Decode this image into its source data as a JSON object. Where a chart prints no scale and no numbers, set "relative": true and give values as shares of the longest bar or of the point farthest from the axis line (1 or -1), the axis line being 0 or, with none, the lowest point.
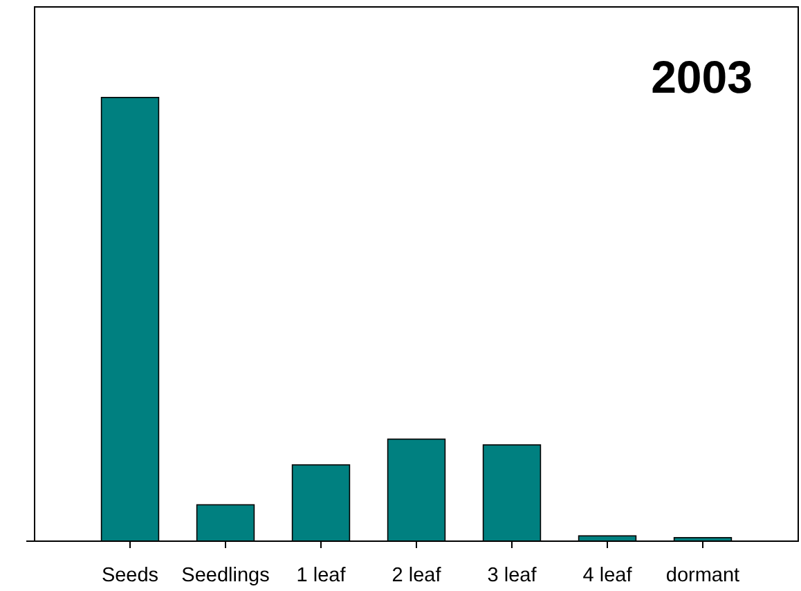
{
  "chart_data": {
    "type": "bar",
    "title": "2003",
    "categories": [
      "Seeds",
      "Seedlings",
      "1 leaf",
      "2 leaf",
      "3 leaf",
      "4 leaf",
      "dormant"
    ],
    "values": [
      1,
      0.082,
      0.172,
      0.23,
      0.217,
      0.012,
      0.008
    ],
    "color": "#008080",
    "relative": true
  }
}
